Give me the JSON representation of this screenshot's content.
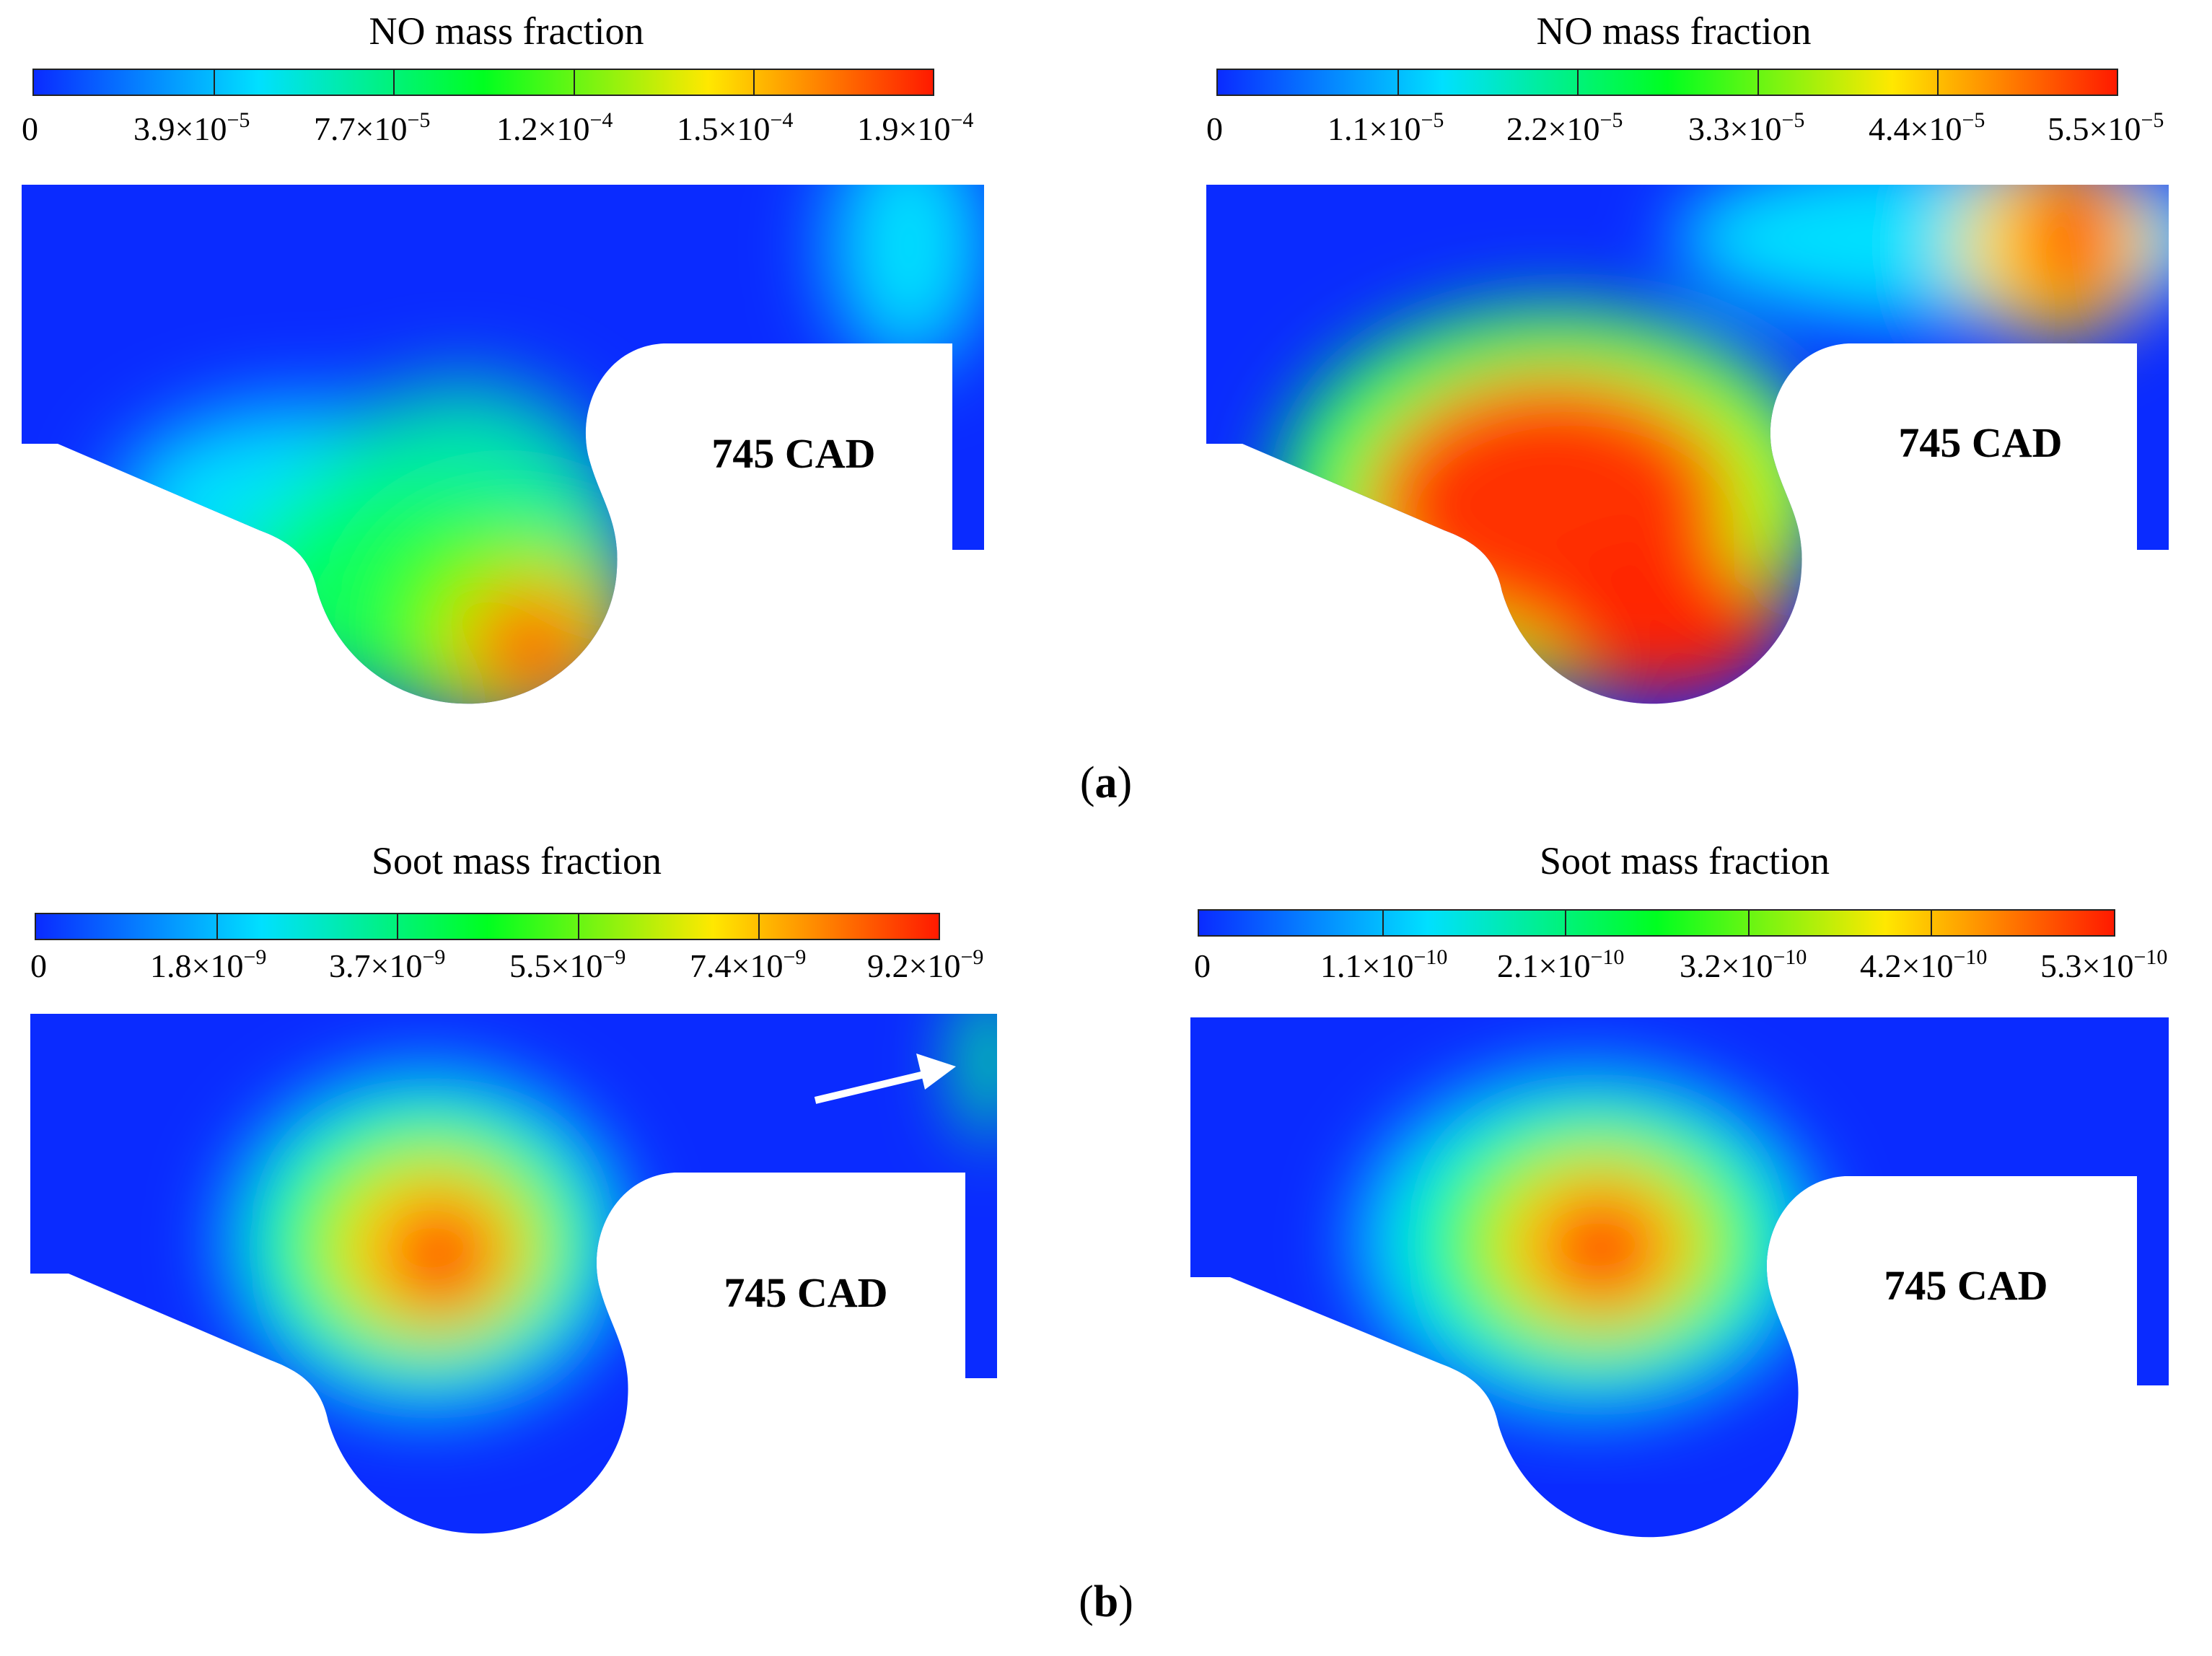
{
  "panels": [
    {
      "title": "NO mass fraction",
      "ticks": [
        {
          "base": "0",
          "exp": ""
        },
        {
          "base": "3.9×10",
          "exp": "−5"
        },
        {
          "base": "7.7×10",
          "exp": "−5"
        },
        {
          "base": "1.2×10",
          "exp": "−4"
        },
        {
          "base": "1.5×10",
          "exp": "−4"
        },
        {
          "base": "1.9×10",
          "exp": "−4"
        }
      ],
      "cad_label": "745 CAD"
    },
    {
      "title": "NO mass fraction",
      "ticks": [
        {
          "base": "0",
          "exp": ""
        },
        {
          "base": "1.1×10",
          "exp": "−5"
        },
        {
          "base": "2.2×10",
          "exp": "−5"
        },
        {
          "base": "3.3×10",
          "exp": "−5"
        },
        {
          "base": "4.4×10",
          "exp": "−5"
        },
        {
          "base": "5.5×10",
          "exp": "−5"
        }
      ],
      "cad_label": "745 CAD"
    },
    {
      "title": "Soot mass fraction",
      "ticks": [
        {
          "base": "0",
          "exp": ""
        },
        {
          "base": "1.8×10",
          "exp": "−9"
        },
        {
          "base": "3.7×10",
          "exp": "−9"
        },
        {
          "base": "5.5×10",
          "exp": "−9"
        },
        {
          "base": "7.4×10",
          "exp": "−9"
        },
        {
          "base": "9.2×10",
          "exp": "−9"
        }
      ],
      "cad_label": "745 CAD"
    },
    {
      "title": "Soot mass fraction",
      "ticks": [
        {
          "base": "0",
          "exp": ""
        },
        {
          "base": "1.1×10",
          "exp": "−10"
        },
        {
          "base": "2.1×10",
          "exp": "−10"
        },
        {
          "base": "3.2×10",
          "exp": "−10"
        },
        {
          "base": "4.2×10",
          "exp": "−10"
        },
        {
          "base": "5.3×10",
          "exp": "−10"
        }
      ],
      "cad_label": "745 CAD"
    }
  ],
  "sublabels": {
    "a": {
      "open": "(",
      "letter": "a",
      "close": ")"
    },
    "b": {
      "open": "(",
      "letter": "b",
      "close": ")"
    }
  },
  "colormap": [
    "#0a2bff",
    "#00e0ff",
    "#00ff20",
    "#ffe800",
    "#ff1a00"
  ]
}
